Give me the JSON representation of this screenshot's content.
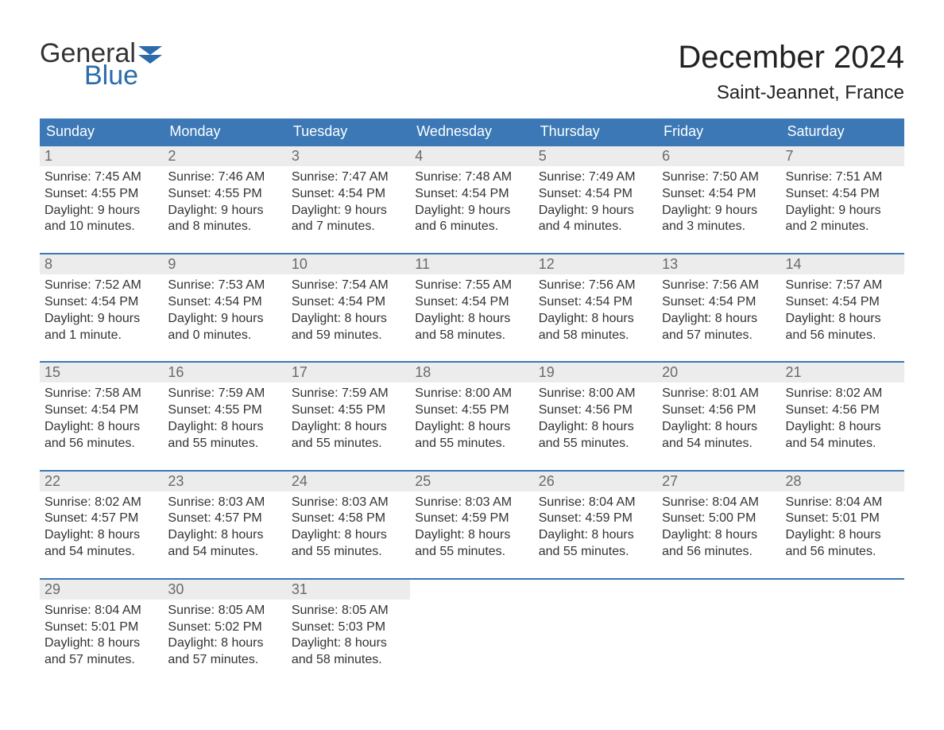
{
  "brand": {
    "word1": "General",
    "word2": "Blue",
    "flag_color": "#2b6bab"
  },
  "title": "December 2024",
  "location": "Saint-Jeannet, France",
  "colors": {
    "header_bg": "#3b78b5",
    "header_text": "#ffffff",
    "daynum_bg": "#ececec",
    "daynum_text": "#6a6a6a",
    "body_text": "#333333",
    "rule": "#3b78b5",
    "page_bg": "#ffffff"
  },
  "typography": {
    "title_fontsize": 40,
    "location_fontsize": 24,
    "dow_fontsize": 18,
    "daynum_fontsize": 18,
    "body_fontsize": 16
  },
  "days_of_week": [
    "Sunday",
    "Monday",
    "Tuesday",
    "Wednesday",
    "Thursday",
    "Friday",
    "Saturday"
  ],
  "weeks": [
    [
      {
        "n": "1",
        "sunrise": "Sunrise: 7:45 AM",
        "sunset": "Sunset: 4:55 PM",
        "d1": "Daylight: 9 hours",
        "d2": "and 10 minutes."
      },
      {
        "n": "2",
        "sunrise": "Sunrise: 7:46 AM",
        "sunset": "Sunset: 4:55 PM",
        "d1": "Daylight: 9 hours",
        "d2": "and 8 minutes."
      },
      {
        "n": "3",
        "sunrise": "Sunrise: 7:47 AM",
        "sunset": "Sunset: 4:54 PM",
        "d1": "Daylight: 9 hours",
        "d2": "and 7 minutes."
      },
      {
        "n": "4",
        "sunrise": "Sunrise: 7:48 AM",
        "sunset": "Sunset: 4:54 PM",
        "d1": "Daylight: 9 hours",
        "d2": "and 6 minutes."
      },
      {
        "n": "5",
        "sunrise": "Sunrise: 7:49 AM",
        "sunset": "Sunset: 4:54 PM",
        "d1": "Daylight: 9 hours",
        "d2": "and 4 minutes."
      },
      {
        "n": "6",
        "sunrise": "Sunrise: 7:50 AM",
        "sunset": "Sunset: 4:54 PM",
        "d1": "Daylight: 9 hours",
        "d2": "and 3 minutes."
      },
      {
        "n": "7",
        "sunrise": "Sunrise: 7:51 AM",
        "sunset": "Sunset: 4:54 PM",
        "d1": "Daylight: 9 hours",
        "d2": "and 2 minutes."
      }
    ],
    [
      {
        "n": "8",
        "sunrise": "Sunrise: 7:52 AM",
        "sunset": "Sunset: 4:54 PM",
        "d1": "Daylight: 9 hours",
        "d2": "and 1 minute."
      },
      {
        "n": "9",
        "sunrise": "Sunrise: 7:53 AM",
        "sunset": "Sunset: 4:54 PM",
        "d1": "Daylight: 9 hours",
        "d2": "and 0 minutes."
      },
      {
        "n": "10",
        "sunrise": "Sunrise: 7:54 AM",
        "sunset": "Sunset: 4:54 PM",
        "d1": "Daylight: 8 hours",
        "d2": "and 59 minutes."
      },
      {
        "n": "11",
        "sunrise": "Sunrise: 7:55 AM",
        "sunset": "Sunset: 4:54 PM",
        "d1": "Daylight: 8 hours",
        "d2": "and 58 minutes."
      },
      {
        "n": "12",
        "sunrise": "Sunrise: 7:56 AM",
        "sunset": "Sunset: 4:54 PM",
        "d1": "Daylight: 8 hours",
        "d2": "and 58 minutes."
      },
      {
        "n": "13",
        "sunrise": "Sunrise: 7:56 AM",
        "sunset": "Sunset: 4:54 PM",
        "d1": "Daylight: 8 hours",
        "d2": "and 57 minutes."
      },
      {
        "n": "14",
        "sunrise": "Sunrise: 7:57 AM",
        "sunset": "Sunset: 4:54 PM",
        "d1": "Daylight: 8 hours",
        "d2": "and 56 minutes."
      }
    ],
    [
      {
        "n": "15",
        "sunrise": "Sunrise: 7:58 AM",
        "sunset": "Sunset: 4:54 PM",
        "d1": "Daylight: 8 hours",
        "d2": "and 56 minutes."
      },
      {
        "n": "16",
        "sunrise": "Sunrise: 7:59 AM",
        "sunset": "Sunset: 4:55 PM",
        "d1": "Daylight: 8 hours",
        "d2": "and 55 minutes."
      },
      {
        "n": "17",
        "sunrise": "Sunrise: 7:59 AM",
        "sunset": "Sunset: 4:55 PM",
        "d1": "Daylight: 8 hours",
        "d2": "and 55 minutes."
      },
      {
        "n": "18",
        "sunrise": "Sunrise: 8:00 AM",
        "sunset": "Sunset: 4:55 PM",
        "d1": "Daylight: 8 hours",
        "d2": "and 55 minutes."
      },
      {
        "n": "19",
        "sunrise": "Sunrise: 8:00 AM",
        "sunset": "Sunset: 4:56 PM",
        "d1": "Daylight: 8 hours",
        "d2": "and 55 minutes."
      },
      {
        "n": "20",
        "sunrise": "Sunrise: 8:01 AM",
        "sunset": "Sunset: 4:56 PM",
        "d1": "Daylight: 8 hours",
        "d2": "and 54 minutes."
      },
      {
        "n": "21",
        "sunrise": "Sunrise: 8:02 AM",
        "sunset": "Sunset: 4:56 PM",
        "d1": "Daylight: 8 hours",
        "d2": "and 54 minutes."
      }
    ],
    [
      {
        "n": "22",
        "sunrise": "Sunrise: 8:02 AM",
        "sunset": "Sunset: 4:57 PM",
        "d1": "Daylight: 8 hours",
        "d2": "and 54 minutes."
      },
      {
        "n": "23",
        "sunrise": "Sunrise: 8:03 AM",
        "sunset": "Sunset: 4:57 PM",
        "d1": "Daylight: 8 hours",
        "d2": "and 54 minutes."
      },
      {
        "n": "24",
        "sunrise": "Sunrise: 8:03 AM",
        "sunset": "Sunset: 4:58 PM",
        "d1": "Daylight: 8 hours",
        "d2": "and 55 minutes."
      },
      {
        "n": "25",
        "sunrise": "Sunrise: 8:03 AM",
        "sunset": "Sunset: 4:59 PM",
        "d1": "Daylight: 8 hours",
        "d2": "and 55 minutes."
      },
      {
        "n": "26",
        "sunrise": "Sunrise: 8:04 AM",
        "sunset": "Sunset: 4:59 PM",
        "d1": "Daylight: 8 hours",
        "d2": "and 55 minutes."
      },
      {
        "n": "27",
        "sunrise": "Sunrise: 8:04 AM",
        "sunset": "Sunset: 5:00 PM",
        "d1": "Daylight: 8 hours",
        "d2": "and 56 minutes."
      },
      {
        "n": "28",
        "sunrise": "Sunrise: 8:04 AM",
        "sunset": "Sunset: 5:01 PM",
        "d1": "Daylight: 8 hours",
        "d2": "and 56 minutes."
      }
    ],
    [
      {
        "n": "29",
        "sunrise": "Sunrise: 8:04 AM",
        "sunset": "Sunset: 5:01 PM",
        "d1": "Daylight: 8 hours",
        "d2": "and 57 minutes."
      },
      {
        "n": "30",
        "sunrise": "Sunrise: 8:05 AM",
        "sunset": "Sunset: 5:02 PM",
        "d1": "Daylight: 8 hours",
        "d2": "and 57 minutes."
      },
      {
        "n": "31",
        "sunrise": "Sunrise: 8:05 AM",
        "sunset": "Sunset: 5:03 PM",
        "d1": "Daylight: 8 hours",
        "d2": "and 58 minutes."
      },
      null,
      null,
      null,
      null
    ]
  ]
}
